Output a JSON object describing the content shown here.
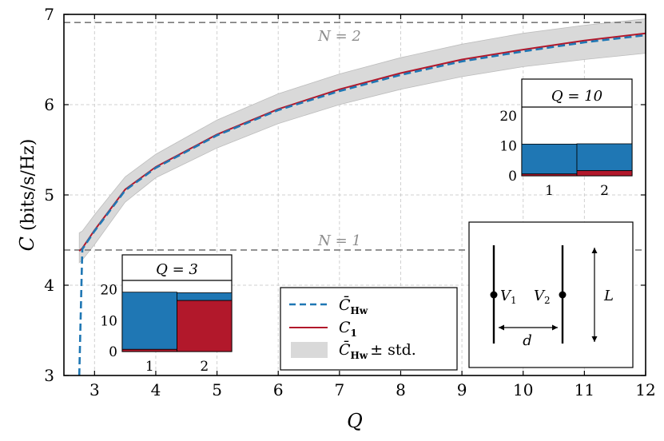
{
  "chart_data": {
    "type": "line",
    "xlabel": "Q",
    "ylabel": "C (bits/s/Hz)",
    "xlim": [
      2.5,
      12
    ],
    "ylim": [
      3,
      7
    ],
    "xticks": [
      3,
      4,
      5,
      6,
      7,
      8,
      9,
      10,
      11,
      12
    ],
    "yticks": [
      3,
      4,
      5,
      6,
      7
    ],
    "grid": true,
    "reference_lines": [
      {
        "label": "N = 2",
        "y": 6.91
      },
      {
        "label": "N = 1",
        "y": 4.39
      }
    ],
    "x": [
      2.75,
      2.8,
      3,
      3.5,
      4,
      5,
      6,
      7,
      8,
      9,
      10,
      11,
      12
    ],
    "series": [
      {
        "name": "C̄_Hw",
        "color": "#1f77b4",
        "style": "dashed",
        "values": [
          3.0,
          4.4,
          4.6,
          5.05,
          5.3,
          5.66,
          5.94,
          6.15,
          6.33,
          6.48,
          6.59,
          6.69,
          6.77
        ]
      },
      {
        "name": "C_1",
        "color": "#b2182b",
        "style": "solid",
        "values": [
          4.38,
          4.41,
          4.61,
          5.06,
          5.31,
          5.67,
          5.95,
          6.17,
          6.35,
          6.5,
          6.61,
          6.71,
          6.79
        ]
      }
    ],
    "band": {
      "name": "C̄_Hw ± std.",
      "color": "#d9d9d9",
      "lower": [
        4.25,
        4.28,
        4.45,
        4.92,
        5.19,
        5.52,
        5.79,
        6.0,
        6.17,
        6.31,
        6.42,
        6.5,
        6.57
      ],
      "upper": [
        4.58,
        4.6,
        4.78,
        5.2,
        5.45,
        5.83,
        6.12,
        6.34,
        6.52,
        6.67,
        6.79,
        6.88,
        6.95
      ]
    },
    "legend": {
      "placement": "bottom-center",
      "entries": [
        {
          "label": "C̄",
          "sub": "Hw"
        },
        {
          "label": "C",
          "sub": "1"
        },
        {
          "label": "C̄",
          "sub": "Hw",
          "suffix": "± std."
        }
      ]
    },
    "insets": [
      {
        "title": "Q = 3",
        "placement": "bottom-left",
        "categories": [
          "1",
          "2"
        ],
        "yticks": [
          0,
          10,
          20
        ],
        "ylim": [
          0,
          23
        ],
        "red": [
          0.7,
          16.5
        ],
        "blue": [
          18.5,
          2.5
        ]
      },
      {
        "title": "Q = 10",
        "placement": "right",
        "categories": [
          "1",
          "2"
        ],
        "yticks": [
          0,
          10,
          20
        ],
        "ylim": [
          0,
          23
        ],
        "red": [
          0.6,
          1.7
        ],
        "blue": [
          10.0,
          9.0
        ]
      }
    ],
    "diagram": {
      "labels": [
        "V1",
        "V2",
        "d",
        "L"
      ],
      "sub_indices": [
        "1",
        "2"
      ]
    }
  }
}
